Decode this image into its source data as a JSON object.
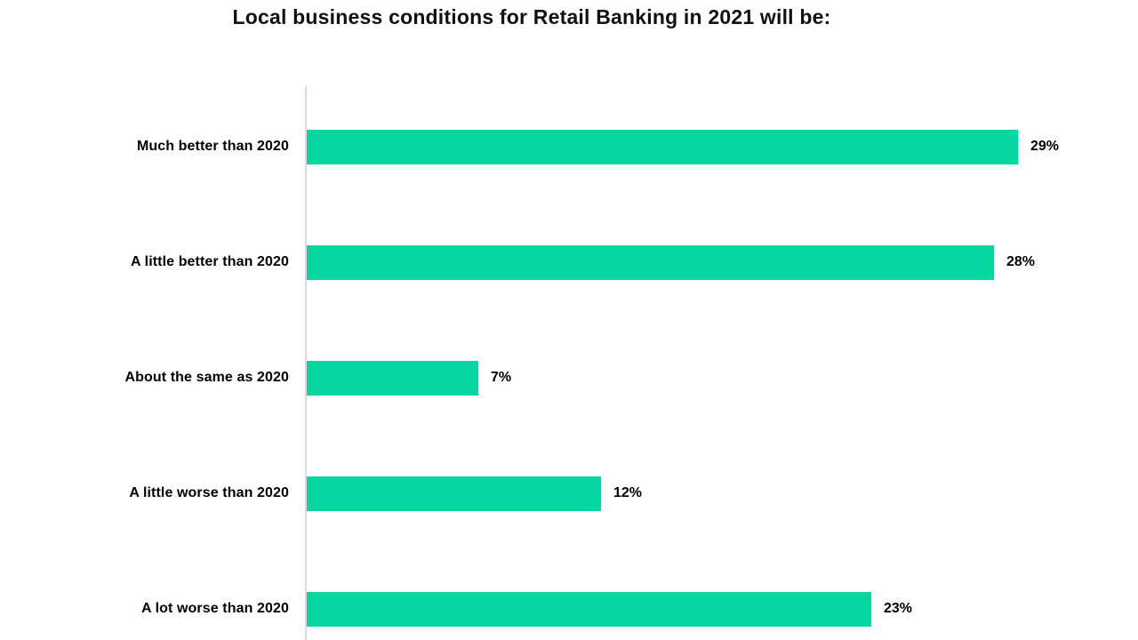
{
  "chart": {
    "bar_color": "#06d6a0",
    "axis_color": "#d9d9d9",
    "title_color": "#111111",
    "label_color": "#000000",
    "background": "#ffffff"
  },
  "chart_data": {
    "type": "bar",
    "orientation": "horizontal",
    "title": "Local business conditions for Retail Banking in 2021 will be:",
    "categories": [
      "Much better than 2020",
      "A little better than 2020",
      "About the same as 2020",
      "A little worse than 2020",
      "A lot worse than 2020"
    ],
    "values": [
      29,
      28,
      7,
      12,
      23
    ],
    "value_labels": [
      "29%",
      "28%",
      "7%",
      "12%",
      "23%"
    ],
    "xlabel": "",
    "ylabel": "",
    "xlim": [
      0,
      33
    ],
    "grid": false,
    "legend": false,
    "data_labels": "outside-end"
  }
}
